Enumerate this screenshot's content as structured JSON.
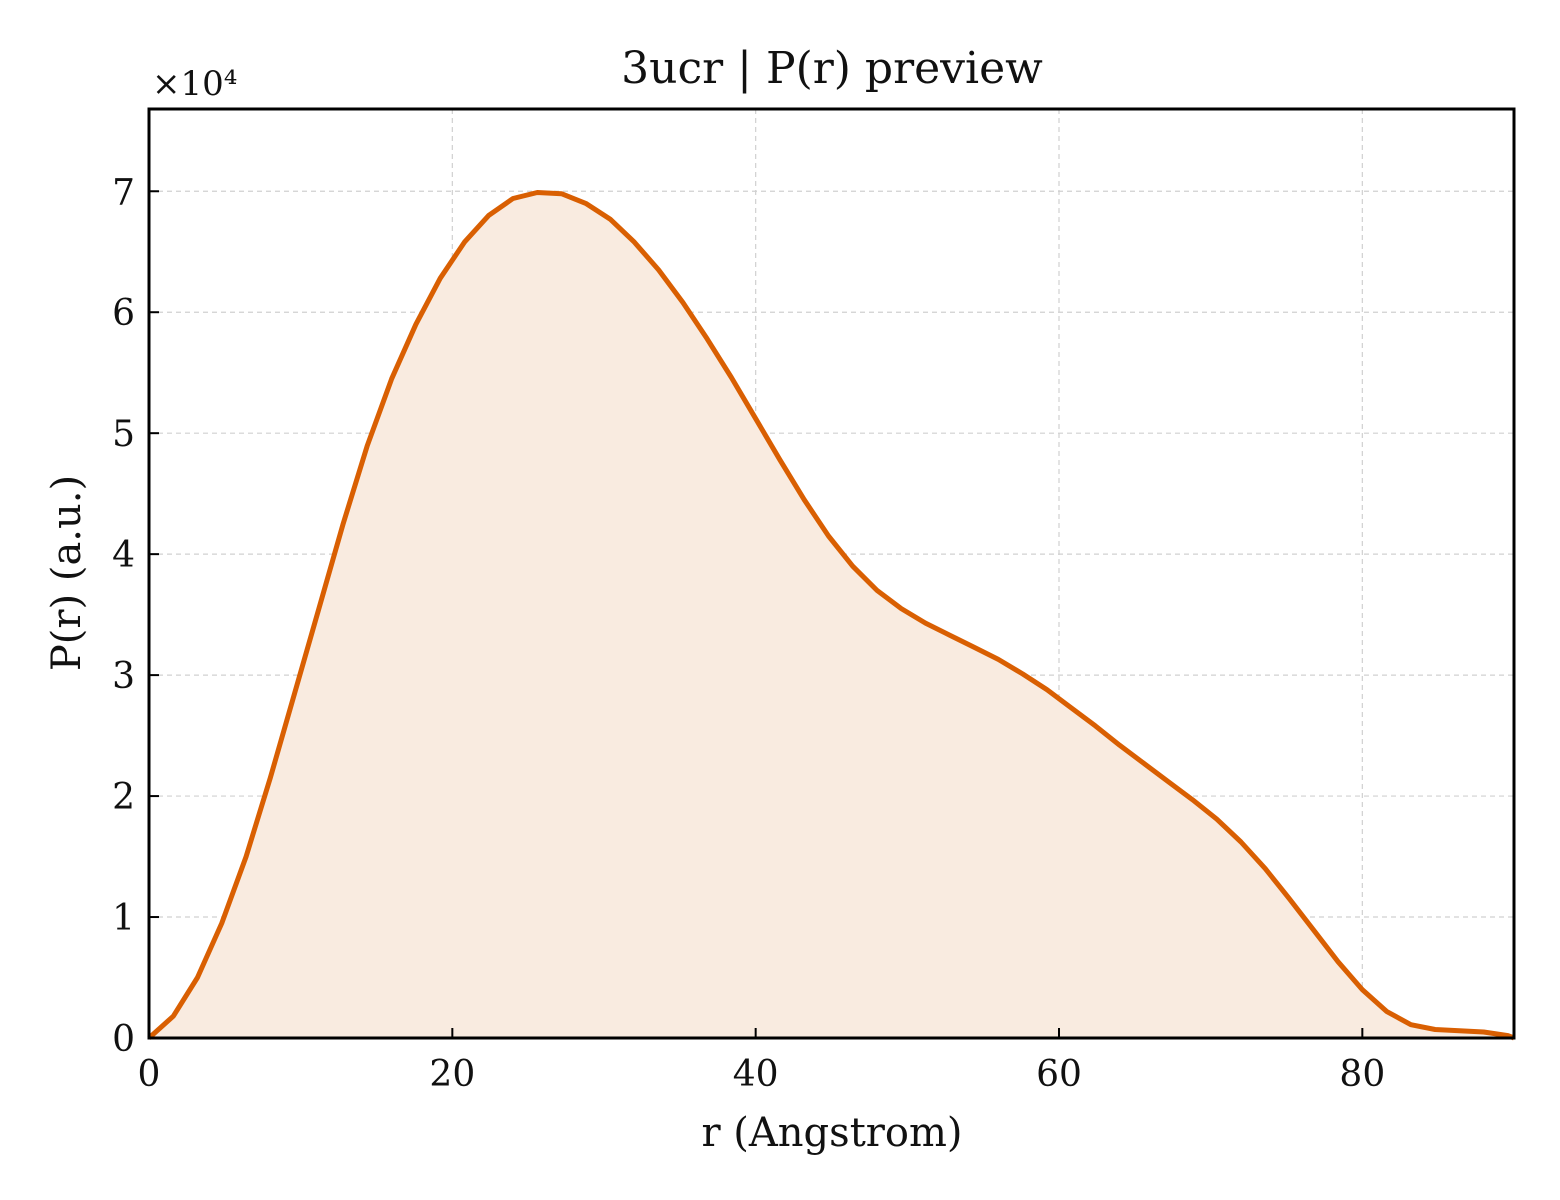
{
  "chart_data": {
    "type": "area",
    "title": "3ucr | P(r) preview",
    "xlabel": "r (Angstrom)",
    "ylabel": "P(r) (a.u.)",
    "y_offset_label": "×10⁴",
    "y_scale_factor": 10000,
    "xlim": [
      0,
      90
    ],
    "ylim": [
      0,
      76800
    ],
    "x_ticks": [
      0,
      20,
      40,
      60,
      80
    ],
    "x_tick_labels": [
      "0",
      "20",
      "40",
      "60",
      "80"
    ],
    "y_ticks": [
      0,
      10000,
      20000,
      30000,
      40000,
      50000,
      60000,
      70000
    ],
    "y_tick_labels": [
      "0",
      "1",
      "2",
      "3",
      "4",
      "5",
      "6",
      "7"
    ],
    "grid": true,
    "colors": {
      "line": "#d95f02",
      "fill": "#f9ebe0",
      "grid": "#d0d0d0",
      "axes": "#000000"
    },
    "series": [
      {
        "x": [
          0,
          1.6,
          3.2,
          4.8,
          6.4,
          8.0,
          9.6,
          11.2,
          12.8,
          14.4,
          16.0,
          17.6,
          19.2,
          20.8,
          22.4,
          24.0,
          25.6,
          27.2,
          28.8,
          30.4,
          32.0,
          33.6,
          35.2,
          36.8,
          38.4,
          40.0,
          41.6,
          43.2,
          44.8,
          46.4,
          48.0,
          49.6,
          51.2,
          52.8,
          54.4,
          56.0,
          57.6,
          59.2,
          60.8,
          62.4,
          64.0,
          65.6,
          67.2,
          68.8,
          70.4,
          72.0,
          73.6,
          75.2,
          76.8,
          78.4,
          80.0,
          81.6,
          83.2,
          84.8,
          86.4,
          88.0,
          89.6,
          90.0
        ],
        "values": [
          0,
          1800,
          5000,
          9500,
          15000,
          21500,
          28500,
          35500,
          42500,
          49000,
          54500,
          59000,
          62800,
          65800,
          68000,
          69400,
          69900,
          69800,
          69000,
          67700,
          65800,
          63500,
          60800,
          57800,
          54600,
          51200,
          47800,
          44500,
          41500,
          39000,
          37000,
          35500,
          34300,
          33300,
          32300,
          31300,
          30100,
          28800,
          27300,
          25800,
          24200,
          22700,
          21200,
          19700,
          18100,
          16200,
          14000,
          11500,
          8900,
          6300,
          4000,
          2200,
          1100,
          700,
          600,
          500,
          200,
          0
        ]
      }
    ]
  }
}
